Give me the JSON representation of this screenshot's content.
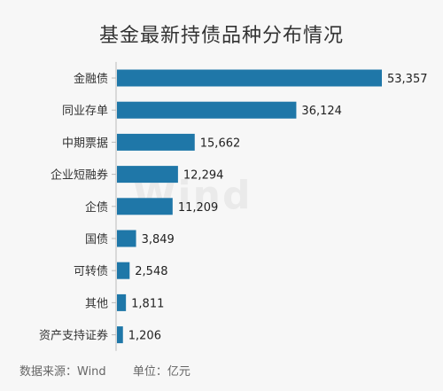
{
  "chart_data": {
    "type": "bar",
    "orientation": "horizontal",
    "title": "基金最新持债品种分布情况",
    "categories": [
      "金融债",
      "同业存单",
      "中期票据",
      "企业短融券",
      "企债",
      "国债",
      "可转债",
      "其他",
      "资产支持证券"
    ],
    "values": [
      53357,
      36124,
      15662,
      12294,
      11209,
      3849,
      2548,
      1811,
      1206
    ],
    "value_labels": [
      "53,357",
      "36,124",
      "15,662",
      "12,294",
      "11,209",
      "3,849",
      "2,548",
      "1,811",
      "1,206"
    ],
    "xlim": [
      0,
      53357
    ],
    "grid": false,
    "legend": "none",
    "bar_color": "#1f77a8"
  },
  "watermark": "Wind",
  "footer": {
    "source": "数据来源：Wind",
    "unit": "单位：亿元"
  }
}
